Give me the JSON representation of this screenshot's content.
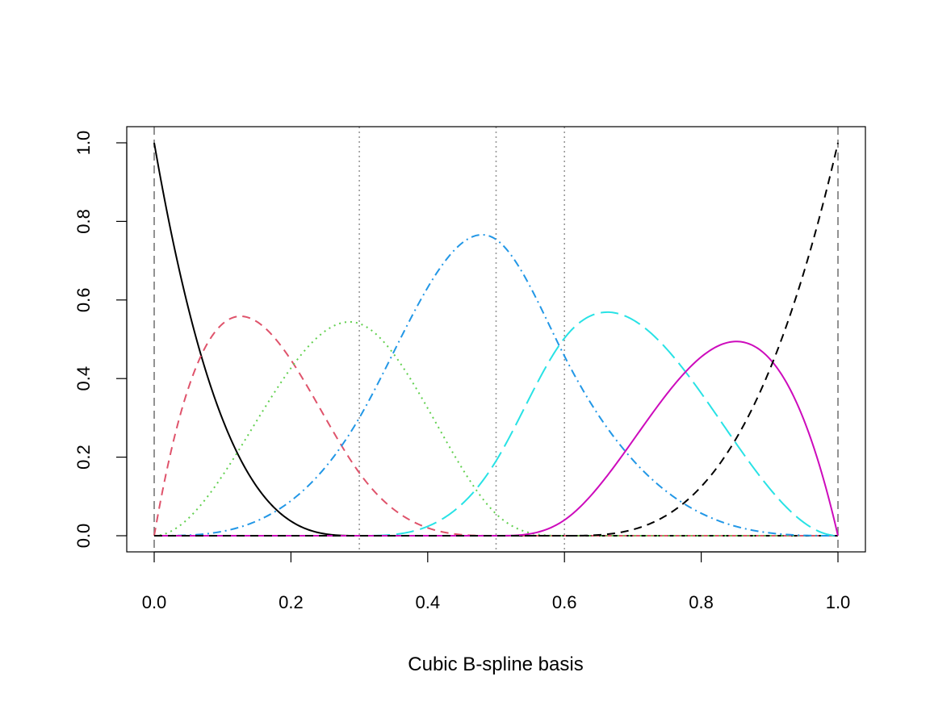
{
  "chart_data": {
    "type": "line",
    "title": "",
    "xlabel": "Cubic B-spline basis",
    "ylabel": "",
    "xlim": [
      0,
      1
    ],
    "ylim": [
      0,
      1
    ],
    "x_ticks": [
      "0.0",
      "0.2",
      "0.4",
      "0.6",
      "0.8",
      "1.0"
    ],
    "y_ticks": [
      "0.0",
      "0.2",
      "0.4",
      "0.6",
      "0.8",
      "1.0"
    ],
    "degree": 3,
    "boundary_knots": [
      0,
      1
    ],
    "interior_knots": [
      0.3,
      0.5,
      0.6
    ],
    "legend": "none",
    "grid": false,
    "series": [
      {
        "color": "#000000",
        "dash": "solid"
      },
      {
        "color": "#DF536B",
        "dash": "dashed"
      },
      {
        "color": "#61D04F",
        "dash": "dotted"
      },
      {
        "color": "#2297E6",
        "dash": "dotdash"
      },
      {
        "color": "#28E2E5",
        "dash": "longdash"
      },
      {
        "color": "#CD0BBC",
        "dash": "solid"
      },
      {
        "color": "#000000",
        "dash": "dashed"
      }
    ],
    "knot_line_colors": {
      "boundary": "#777777",
      "interior": "#999999"
    }
  }
}
